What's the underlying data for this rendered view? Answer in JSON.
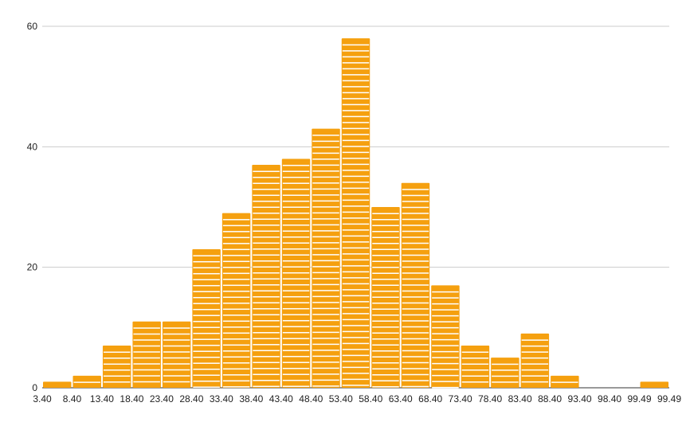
{
  "chart_data": {
    "type": "bar",
    "subtype": "histogram",
    "title": "",
    "xlabel": "",
    "ylabel": "",
    "bar_color": "#f5a00f",
    "bin_edges": [
      "3.40",
      "8.40",
      "13.40",
      "18.40",
      "23.40",
      "28.40",
      "33.40",
      "38.40",
      "43.40",
      "48.40",
      "53.40",
      "58.40",
      "63.40",
      "68.40",
      "73.40",
      "78.40",
      "83.40",
      "88.40",
      "93.40",
      "98.40",
      "99.49",
      "99.49"
    ],
    "values": [
      1,
      2,
      7,
      11,
      11,
      23,
      29,
      37,
      38,
      43,
      58,
      30,
      34,
      17,
      7,
      5,
      9,
      2,
      0,
      0,
      1
    ],
    "y_ticks": [
      0,
      20,
      40,
      60
    ],
    "ylim": [
      0,
      60
    ],
    "grid": true,
    "legend": "none"
  }
}
